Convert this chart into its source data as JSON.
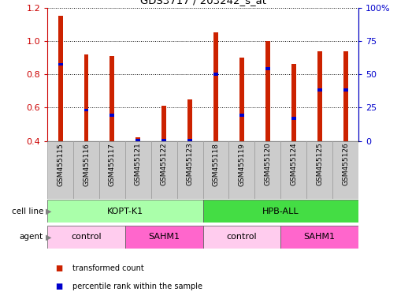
{
  "title": "GDS3717 / 203242_s_at",
  "categories": [
    "GSM455115",
    "GSM455116",
    "GSM455117",
    "GSM455121",
    "GSM455122",
    "GSM455123",
    "GSM455118",
    "GSM455119",
    "GSM455120",
    "GSM455124",
    "GSM455125",
    "GSM455126"
  ],
  "red_values": [
    1.15,
    0.92,
    0.91,
    0.42,
    0.61,
    0.65,
    1.05,
    0.9,
    1.0,
    0.86,
    0.94,
    0.94
  ],
  "blue_values": [
    0.86,
    0.585,
    0.555,
    0.405,
    0.405,
    0.405,
    0.8,
    0.555,
    0.835,
    0.535,
    0.705,
    0.705
  ],
  "ylim_left": [
    0.4,
    1.2
  ],
  "left_ticks": [
    0.4,
    0.6,
    0.8,
    1.0,
    1.2
  ],
  "right_ticks": [
    0,
    25,
    50,
    75,
    100
  ],
  "right_tick_labels": [
    "0",
    "25",
    "50",
    "75",
    "100%"
  ],
  "cell_line_groups": [
    {
      "label": "KOPT-K1",
      "start": 0,
      "end": 6,
      "color": "#AAFFAA"
    },
    {
      "label": "HPB-ALL",
      "start": 6,
      "end": 12,
      "color": "#44DD44"
    }
  ],
  "agent_groups": [
    {
      "label": "control",
      "start": 0,
      "end": 3,
      "color": "#FFCCEE"
    },
    {
      "label": "SAHM1",
      "start": 3,
      "end": 6,
      "color": "#FF66CC"
    },
    {
      "label": "control",
      "start": 6,
      "end": 9,
      "color": "#FFCCEE"
    },
    {
      "label": "SAHM1",
      "start": 9,
      "end": 12,
      "color": "#FF66CC"
    }
  ],
  "bar_width": 0.18,
  "red_color": "#CC2200",
  "blue_color": "#0000CC",
  "tick_color_left": "#CC0000",
  "tick_color_right": "#0000CC",
  "legend_items": [
    {
      "label": "transformed count",
      "color": "#CC2200"
    },
    {
      "label": "percentile rank within the sample",
      "color": "#0000CC"
    }
  ]
}
